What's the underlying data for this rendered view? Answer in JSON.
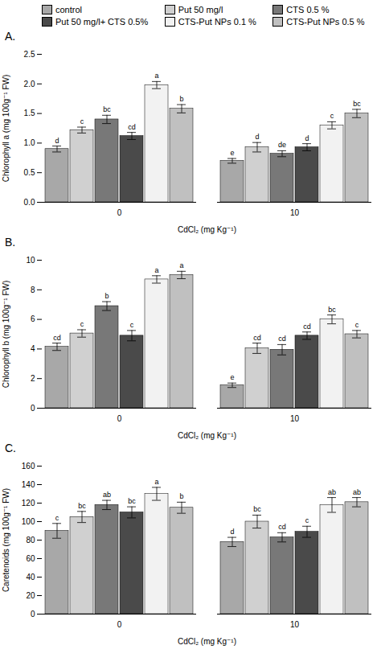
{
  "chart_data": [
    {
      "type": "bar",
      "title": "A.",
      "xlabel": "CdCl₂ (mg Kg⁻¹)",
      "ylabel": "Chlorophyll a (mg 100g⁻¹ FW)",
      "categories": [
        "0",
        "10"
      ],
      "ylim": [
        0,
        2.5
      ],
      "yticks": [
        {
          "value": 0,
          "label": "0.0"
        },
        0.5,
        {
          "value": 1.0,
          "label": "1.0"
        },
        1.5,
        {
          "value": 2.0,
          "label": "2.0"
        },
        2.5
      ],
      "legend": "top",
      "series": [
        {
          "name": "control",
          "color": "#a8a8a8",
          "values": [
            0.9,
            0.7
          ],
          "errors": [
            0.05,
            0.04
          ],
          "letters": [
            "d",
            "e"
          ]
        },
        {
          "name": "Put 50 mg/l",
          "color": "#d0d0d0",
          "values": [
            1.22,
            0.93
          ],
          "errors": [
            0.05,
            0.08
          ],
          "letters": [
            "c",
            "d"
          ]
        },
        {
          "name": "CTS 0.5 %",
          "color": "#787878",
          "values": [
            1.4,
            0.82
          ],
          "errors": [
            0.07,
            0.05
          ],
          "letters": [
            "bc",
            "de"
          ]
        },
        {
          "name": "Put 50 mg/l+ CTS 0.5%",
          "color": "#4a4a4a",
          "values": [
            1.12,
            0.93
          ],
          "errors": [
            0.06,
            0.06
          ],
          "letters": [
            "cd",
            "d"
          ]
        },
        {
          "name": "CTS-Put NPs 0.1 %",
          "color": "#f2f2f2",
          "values": [
            1.98,
            1.3
          ],
          "errors": [
            0.06,
            0.06
          ],
          "letters": [
            "a",
            "c"
          ]
        },
        {
          "name": "CTS-Put NPs 0.5 %",
          "color": "#c0c0c0",
          "values": [
            1.58,
            1.5
          ],
          "errors": [
            0.07,
            0.07
          ],
          "letters": [
            "b",
            "bc"
          ]
        }
      ]
    },
    {
      "type": "bar",
      "title": "B.",
      "xlabel": "CdCl₂ (mg Kg⁻¹)",
      "ylabel": "Chlorophyll b (mg 100g⁻¹ FW)",
      "categories": [
        "0",
        "10"
      ],
      "ylim": [
        0,
        10
      ],
      "yticks": [
        0,
        2,
        4,
        6,
        8,
        10
      ],
      "series": [
        {
          "name": "control",
          "color": "#a8a8a8",
          "values": [
            4.15,
            1.55
          ],
          "errors": [
            0.25,
            0.15
          ],
          "letters": [
            "cd",
            "e"
          ]
        },
        {
          "name": "Put 50 mg/l",
          "color": "#d0d0d0",
          "values": [
            5.05,
            4.05
          ],
          "errors": [
            0.25,
            0.35
          ],
          "letters": [
            "c",
            "cd"
          ]
        },
        {
          "name": "CTS 0.5 %",
          "color": "#787878",
          "values": [
            6.9,
            3.95
          ],
          "errors": [
            0.3,
            0.35
          ],
          "letters": [
            "b",
            "cd"
          ]
        },
        {
          "name": "Put 50 mg/l+ CTS 0.5%",
          "color": "#4a4a4a",
          "values": [
            4.9,
            4.9
          ],
          "errors": [
            0.35,
            0.25
          ],
          "letters": [
            "c",
            "cd"
          ]
        },
        {
          "name": "CTS-Put NPs 0.1 %",
          "color": "#f2f2f2",
          "values": [
            8.7,
            6.0
          ],
          "errors": [
            0.25,
            0.3
          ],
          "letters": [
            "a",
            "bc"
          ]
        },
        {
          "name": "CTS-Put NPs 0.5 %",
          "color": "#c0c0c0",
          "values": [
            9.0,
            5.0
          ],
          "errors": [
            0.25,
            0.25
          ],
          "letters": [
            "a",
            "c"
          ]
        }
      ]
    },
    {
      "type": "bar",
      "title": "C.",
      "xlabel": "CdCl₂ (mg Kg⁻¹)",
      "ylabel": "Caretenoids (mg 100g⁻¹ FW)",
      "categories": [
        "0",
        "10"
      ],
      "ylim": [
        0,
        160
      ],
      "yticks": [
        0,
        20,
        40,
        60,
        80,
        100,
        120,
        140,
        160
      ],
      "series": [
        {
          "name": "control",
          "color": "#a8a8a8",
          "values": [
            90,
            78
          ],
          "errors": [
            8,
            5
          ],
          "letters": [
            "c",
            "d"
          ]
        },
        {
          "name": "Put 50 mg/l",
          "color": "#d0d0d0",
          "values": [
            105,
            100
          ],
          "errors": [
            6,
            7
          ],
          "letters": [
            "bc",
            "bc"
          ]
        },
        {
          "name": "CTS 0.5 %",
          "color": "#787878",
          "values": [
            118,
            83
          ],
          "errors": [
            5,
            5
          ],
          "letters": [
            "ab",
            "cd"
          ]
        },
        {
          "name": "Put 50 mg/l+ CTS 0.5%",
          "color": "#4a4a4a",
          "values": [
            110,
            89
          ],
          "errors": [
            6,
            6
          ],
          "letters": [
            "bc",
            "c"
          ]
        },
        {
          "name": "CTS-Put NPs 0.1 %",
          "color": "#f2f2f2",
          "values": [
            130,
            118
          ],
          "errors": [
            7,
            8
          ],
          "letters": [
            "a",
            "ab"
          ]
        },
        {
          "name": "CTS-Put NPs 0.5 %",
          "color": "#c0c0c0",
          "values": [
            115,
            121
          ],
          "errors": [
            6,
            5
          ],
          "letters": [
            "b",
            "ab"
          ]
        }
      ]
    }
  ]
}
